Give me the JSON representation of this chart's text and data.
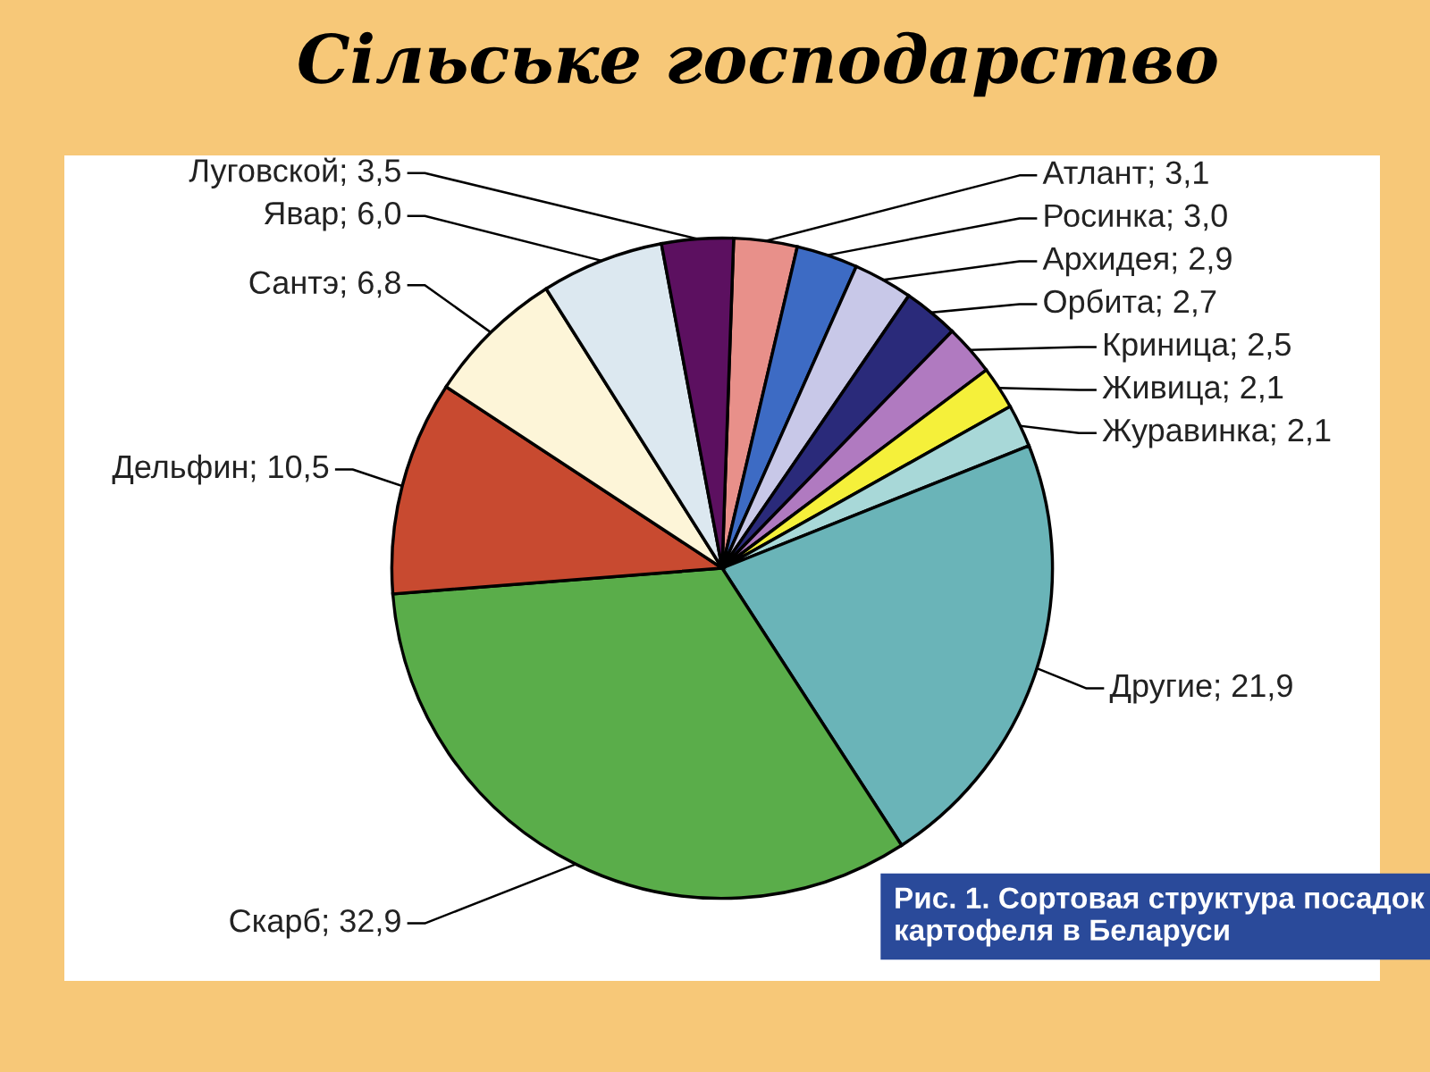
{
  "chart_data": {
    "type": "pie",
    "title": "Сільське господарство",
    "categories": [
      "Атлант",
      "Росинка",
      "Архидея",
      "Орбита",
      "Криница",
      "Живица",
      "Журавинка",
      "Другие",
      "Скарб",
      "Дельфин",
      "Сантэ",
      "Явар",
      "Луговской"
    ],
    "values": [
      3.1,
      3.0,
      2.9,
      2.7,
      2.5,
      2.1,
      2.1,
      21.9,
      32.9,
      10.5,
      6.8,
      6.0,
      3.5
    ],
    "value_labels": [
      "3,1",
      "3,0",
      "2,9",
      "2,7",
      "2,5",
      "2,1",
      "2,1",
      "21,9",
      "32,9",
      "10,5",
      "6,8",
      "6,0",
      "3,5"
    ],
    "colors": [
      "#e8908a",
      "#3d6bc4",
      "#c8c8e8",
      "#2a2a7a",
      "#b07ac0",
      "#f5f03a",
      "#a8d8d8",
      "#6ab4b8",
      "#5aad4a",
      "#c84a30",
      "#fdf5d8",
      "#dce8f0",
      "#5c1060"
    ],
    "annotations": [
      "Рис. 1. Сортовая структура посадок картофеля в Беларуси"
    ]
  }
}
